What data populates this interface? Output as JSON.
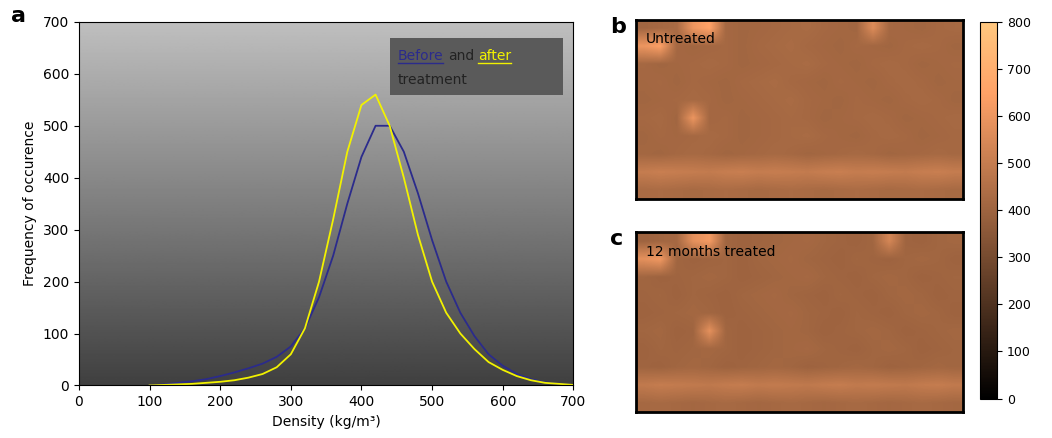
{
  "chart_data": [
    {
      "type": "line",
      "panel": "a",
      "x": [
        100,
        120,
        140,
        160,
        180,
        200,
        220,
        240,
        260,
        280,
        300,
        320,
        340,
        360,
        380,
        400,
        420,
        440,
        460,
        480,
        500,
        520,
        540,
        560,
        580,
        600,
        620,
        640,
        660,
        680,
        700
      ],
      "series": [
        {
          "name": "Before",
          "color": "#2b2b8c",
          "values": [
            0,
            2,
            5,
            8,
            12,
            18,
            25,
            33,
            42,
            55,
            75,
            110,
            170,
            250,
            350,
            440,
            500,
            500,
            450,
            370,
            280,
            200,
            140,
            95,
            60,
            38,
            22,
            12,
            6,
            3,
            1
          ]
        },
        {
          "name": "after",
          "color": "#f2f200",
          "values": [
            0,
            1,
            2,
            3,
            5,
            7,
            10,
            15,
            22,
            35,
            60,
            110,
            200,
            320,
            450,
            540,
            560,
            500,
            400,
            290,
            200,
            140,
            100,
            70,
            45,
            30,
            18,
            10,
            5,
            3,
            1
          ]
        }
      ],
      "annotations": [
        "and",
        "treatment"
      ],
      "x_label": "Density (kg/m³)",
      "y_label": "Frequency of occurence",
      "xlim": [
        0,
        700
      ],
      "xticks": [
        0,
        100,
        200,
        300,
        400,
        500,
        600,
        700
      ],
      "ylim": [
        0,
        700
      ],
      "yticks": [
        0,
        100,
        200,
        300,
        400,
        500,
        600,
        700
      ]
    },
    {
      "type": "heatmap",
      "panel": "b",
      "text": "Untreated",
      "cells": [
        [
          410,
          420,
          430,
          600,
          650,
          420,
          410,
          415,
          420,
          425,
          430,
          420,
          415,
          410,
          560,
          420,
          415,
          410,
          420,
          425
        ],
        [
          600,
          640,
          420,
          410,
          415,
          420,
          410,
          420,
          425,
          430,
          420,
          415,
          410,
          420,
          415,
          410,
          420,
          425,
          420,
          410
        ],
        [
          420,
          410,
          415,
          420,
          425,
          420,
          410,
          415,
          420,
          425,
          430,
          420,
          415,
          410,
          420,
          425,
          420,
          410,
          415,
          420
        ],
        [
          415,
          420,
          410,
          420,
          415,
          410,
          420,
          425,
          430,
          420,
          415,
          410,
          420,
          415,
          410,
          420,
          425,
          420,
          410,
          415
        ],
        [
          410,
          415,
          420,
          425,
          420,
          410,
          415,
          420,
          425,
          430,
          420,
          415,
          410,
          420,
          415,
          410,
          420,
          425,
          420,
          410
        ],
        [
          420,
          425,
          410,
          600,
          415,
          420,
          410,
          415,
          420,
          425,
          420,
          410,
          415,
          420,
          425,
          420,
          410,
          415,
          420,
          425
        ],
        [
          410,
          420,
          415,
          420,
          425,
          420,
          410,
          415,
          420,
          425,
          430,
          420,
          415,
          410,
          420,
          425,
          420,
          410,
          415,
          420
        ],
        [
          415,
          410,
          420,
          425,
          420,
          410,
          415,
          420,
          425,
          420,
          410,
          415,
          420,
          425,
          420,
          410,
          415,
          420,
          425,
          420
        ],
        [
          500,
          510,
          505,
          500,
          495,
          505,
          510,
          500,
          505,
          500,
          495,
          505,
          510,
          500,
          505,
          500,
          495,
          505,
          510,
          500
        ],
        [
          430,
          435,
          430,
          425,
          430,
          435,
          430,
          425,
          430,
          435,
          430,
          425,
          430,
          435,
          430,
          425,
          430,
          435,
          430,
          425
        ]
      ]
    },
    {
      "type": "heatmap",
      "panel": "c",
      "text": "12 months treated",
      "cells": [
        [
          400,
          410,
          420,
          580,
          620,
          410,
          400,
          405,
          410,
          415,
          420,
          410,
          405,
          400,
          410,
          540,
          405,
          400,
          410,
          415
        ],
        [
          580,
          610,
          410,
          400,
          405,
          410,
          400,
          410,
          415,
          420,
          410,
          405,
          400,
          410,
          405,
          400,
          410,
          415,
          410,
          400
        ],
        [
          410,
          400,
          405,
          410,
          415,
          410,
          400,
          405,
          410,
          415,
          420,
          410,
          405,
          400,
          410,
          415,
          410,
          400,
          405,
          410
        ],
        [
          405,
          410,
          400,
          410,
          405,
          400,
          410,
          415,
          420,
          410,
          405,
          400,
          410,
          405,
          400,
          410,
          415,
          410,
          400,
          405
        ],
        [
          400,
          405,
          410,
          415,
          410,
          400,
          405,
          410,
          415,
          420,
          410,
          405,
          400,
          410,
          405,
          400,
          410,
          415,
          410,
          400
        ],
        [
          410,
          415,
          400,
          405,
          580,
          410,
          400,
          405,
          410,
          415,
          410,
          400,
          405,
          410,
          415,
          410,
          400,
          405,
          410,
          415
        ],
        [
          400,
          410,
          405,
          410,
          415,
          410,
          400,
          405,
          410,
          415,
          420,
          410,
          405,
          400,
          410,
          415,
          410,
          400,
          405,
          410
        ],
        [
          405,
          400,
          410,
          415,
          410,
          400,
          405,
          410,
          415,
          410,
          400,
          405,
          410,
          415,
          410,
          400,
          405,
          410,
          415,
          410
        ],
        [
          490,
          500,
          495,
          490,
          485,
          495,
          500,
          490,
          495,
          490,
          485,
          495,
          500,
          490,
          495,
          490,
          485,
          495,
          500,
          490
        ],
        [
          420,
          425,
          420,
          415,
          420,
          425,
          420,
          415,
          420,
          425,
          420,
          415,
          420,
          425,
          420,
          415,
          420,
          425,
          420,
          415
        ]
      ]
    }
  ],
  "colorbar": {
    "range": [
      0,
      800
    ],
    "ticks": [
      0,
      100,
      200,
      300,
      400,
      500,
      600,
      700,
      800
    ]
  }
}
